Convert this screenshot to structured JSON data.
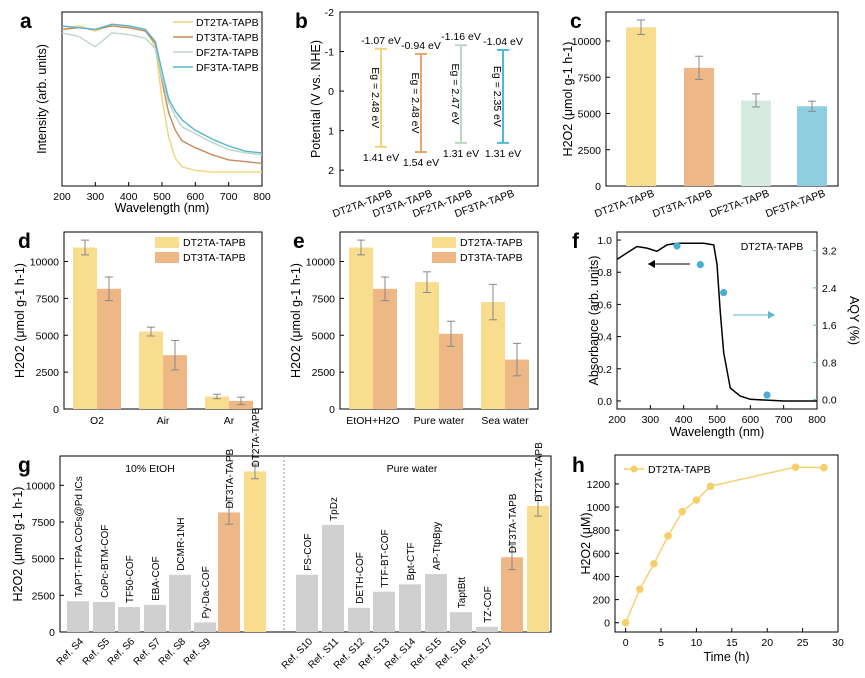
{
  "figure": {
    "panel_labels": [
      "a",
      "b",
      "c",
      "d",
      "e",
      "f",
      "g",
      "h"
    ]
  },
  "chart_data": [
    {
      "panel": "a",
      "type": "line",
      "xlabel": "Wavelength (nm)",
      "ylabel": "Intensity (arb. units)",
      "xlim": [
        200,
        800
      ],
      "xticks": [
        200,
        300,
        400,
        500,
        600,
        700,
        800
      ],
      "grid": false,
      "legend": "top-right",
      "series": [
        {
          "name": "DT2TA-TAPB",
          "color": "#f2d27a",
          "x": [
            200,
            250,
            300,
            350,
            400,
            450,
            480,
            500,
            520,
            540,
            560,
            600,
            650,
            700,
            750,
            800
          ],
          "y": [
            0.9,
            0.92,
            0.89,
            0.93,
            0.92,
            0.9,
            0.8,
            0.5,
            0.28,
            0.16,
            0.11,
            0.09,
            0.08,
            0.08,
            0.08,
            0.08
          ]
        },
        {
          "name": "DT3TA-TAPB",
          "color": "#c98a5a",
          "x": [
            200,
            250,
            300,
            350,
            400,
            450,
            480,
            500,
            520,
            540,
            560,
            600,
            650,
            700,
            750,
            800
          ],
          "y": [
            0.9,
            0.91,
            0.9,
            0.92,
            0.91,
            0.89,
            0.82,
            0.6,
            0.42,
            0.32,
            0.26,
            0.22,
            0.18,
            0.15,
            0.14,
            0.13
          ]
        },
        {
          "name": "DF2TA-TAPB",
          "color": "#bcd7c5",
          "x": [
            200,
            250,
            300,
            350,
            400,
            450,
            480,
            500,
            520,
            540,
            560,
            600,
            650,
            700,
            750,
            800
          ],
          "y": [
            0.88,
            0.86,
            0.8,
            0.88,
            0.87,
            0.85,
            0.79,
            0.62,
            0.48,
            0.4,
            0.34,
            0.3,
            0.25,
            0.21,
            0.19,
            0.18
          ]
        },
        {
          "name": "DF3TA-TAPB",
          "color": "#55b6d2",
          "x": [
            200,
            250,
            300,
            350,
            400,
            450,
            480,
            500,
            520,
            540,
            560,
            600,
            650,
            700,
            750,
            800
          ],
          "y": [
            0.92,
            0.91,
            0.9,
            0.93,
            0.92,
            0.9,
            0.83,
            0.66,
            0.5,
            0.43,
            0.38,
            0.32,
            0.27,
            0.23,
            0.2,
            0.19
          ]
        }
      ]
    },
    {
      "panel": "b",
      "type": "bar",
      "ylabel": "Potential (V vs. NHE)",
      "ylim": [
        2.4,
        -2.0
      ],
      "yticks": [
        "-2",
        "-1",
        "0",
        "1",
        "2"
      ],
      "categories": [
        "DT2TA-TAPB",
        "DT3TA-TAPB",
        "DF2TA-TAPB",
        "DF3TA-TAPB"
      ],
      "cb": [
        -1.07,
        -0.94,
        -1.16,
        -1.04
      ],
      "vb": [
        1.41,
        1.54,
        1.31,
        1.31
      ],
      "cb_labels": [
        "-1.07 eV",
        "-0.94 eV",
        "-1.16 eV",
        "-1.04 eV"
      ],
      "vb_labels": [
        "1.41 eV",
        "1.54 eV",
        "1.31 eV",
        "1.31 eV"
      ],
      "eg_labels": [
        "Eg = 2.48 eV",
        "Eg = 2.48 eV",
        "Eg = 2.47 eV",
        "Eg = 2.35 eV"
      ],
      "colors": [
        "#f2d27a",
        "#e4a86a",
        "#bcd7c5",
        "#55b6d2"
      ]
    },
    {
      "panel": "c",
      "type": "bar",
      "ylabel": "H2O2 (μmol g-1 h-1)",
      "ylim": [
        0,
        12000
      ],
      "yticks": [
        "0",
        "2500",
        "5000",
        "7500",
        "10000"
      ],
      "categories": [
        "DT2TA-TAPB",
        "DT3TA-TAPB",
        "DF2TA-TAPB",
        "DF3TA-TAPB"
      ],
      "values": [
        10950,
        8150,
        5900,
        5500
      ],
      "errors": [
        500,
        800,
        450,
        350
      ],
      "colors": [
        "#f8dd8e",
        "#eeb786",
        "#d7eadf",
        "#8dcfe0"
      ]
    },
    {
      "panel": "d",
      "type": "bar",
      "ylabel": "H2O2 (μmol g-1 h-1)",
      "ylim": [
        0,
        12000
      ],
      "yticks": [
        "0",
        "2500",
        "5000",
        "7500",
        "10000"
      ],
      "categories": [
        "O2",
        "Air",
        "Ar"
      ],
      "legend": "top-right",
      "series": [
        {
          "name": "DT2TA-TAPB",
          "color": "#f8dd8e",
          "values": [
            10950,
            5250,
            850
          ],
          "errors": [
            500,
            300,
            150
          ]
        },
        {
          "name": "DT3TA-TAPB",
          "color": "#eeb786",
          "values": [
            8150,
            3650,
            550
          ],
          "errors": [
            800,
            1000,
            250
          ]
        }
      ]
    },
    {
      "panel": "e",
      "type": "bar",
      "ylabel": "H2O2 (μmol g-1 h-1)",
      "ylim": [
        0,
        12000
      ],
      "yticks": [
        "0",
        "2500",
        "5000",
        "7500",
        "10000"
      ],
      "categories": [
        "EtOH+H2O",
        "Pure water",
        "Sea water"
      ],
      "legend": "top-right",
      "series": [
        {
          "name": "DT2TA-TAPB",
          "color": "#f8dd8e",
          "values": [
            10950,
            8600,
            7250
          ],
          "errors": [
            500,
            700,
            1200
          ]
        },
        {
          "name": "DT3TA-TAPB",
          "color": "#eeb786",
          "values": [
            8150,
            5100,
            3350
          ],
          "errors": [
            800,
            850,
            1100
          ]
        }
      ]
    },
    {
      "panel": "f",
      "type": "line",
      "title": "DT2TA-TAPB",
      "xlabel": "Wavelength (nm)",
      "ylabel": "Absorbance (arb. units)",
      "y2label": "AQY (%)",
      "xlim": [
        200,
        800
      ],
      "ylim": [
        -0.05,
        1.05
      ],
      "y2lim": [
        -0.2,
        3.6
      ],
      "xticks": [
        "200",
        "300",
        "400",
        "500",
        "600",
        "700",
        "800"
      ],
      "yticks": [
        "0.0",
        "0.2",
        "0.4",
        "0.6",
        "0.8",
        "1.0"
      ],
      "y2ticks": [
        "0.0",
        "0.8",
        "1.6",
        "2.4",
        "3.2"
      ],
      "absorbance": {
        "x": [
          200,
          230,
          260,
          290,
          320,
          350,
          380,
          420,
          460,
          490,
          500,
          510,
          520,
          540,
          570,
          600,
          700,
          800
        ],
        "y": [
          0.88,
          0.92,
          0.96,
          0.95,
          0.93,
          0.97,
          0.98,
          0.98,
          0.98,
          0.97,
          0.85,
          0.55,
          0.3,
          0.08,
          0.03,
          0.01,
          0.0,
          0.0
        ]
      },
      "aqy": {
        "x": [
          380,
          450,
          520,
          650
        ],
        "y": [
          3.3,
          2.9,
          2.3,
          0.1
        ]
      }
    },
    {
      "panel": "g",
      "type": "bar",
      "ylabel": "H2O2 (μmol g-1 h-1)",
      "ylim": [
        0,
        12000
      ],
      "yticks": [
        "0",
        "2500",
        "5000",
        "7500",
        "10000"
      ],
      "group_labels": [
        "10% EtOH",
        "Pure water"
      ],
      "groups": [
        {
          "bars": [
            {
              "label": "TAPT-TFPA COFs@Pd ICs",
              "ref": "Ref. S4",
              "value": 2100,
              "color": "#d0d0d0"
            },
            {
              "label": "CoPc-BTM-COF",
              "ref": "Ref. S5",
              "value": 2050,
              "color": "#d0d0d0"
            },
            {
              "label": "TF50-COF",
              "ref": "Ref. S6",
              "value": 1700,
              "color": "#d0d0d0"
            },
            {
              "label": "EBA-COF",
              "ref": "Ref. S7",
              "value": 1850,
              "color": "#d0d0d0"
            },
            {
              "label": "DCMR-1NH",
              "ref": "Ref. S8",
              "value": 3900,
              "color": "#d0d0d0"
            },
            {
              "label": "Py-Da-COF",
              "ref": "Ref. S9",
              "value": 650,
              "color": "#d0d0d0"
            },
            {
              "label": "DT3TA-TAPB",
              "ref": "",
              "value": 8150,
              "error": 800,
              "color": "#eeb786"
            },
            {
              "label": "DT2TA-TAPB",
              "ref": "",
              "value": 10950,
              "error": 500,
              "color": "#f8dd8e"
            }
          ]
        },
        {
          "bars": [
            {
              "label": "FS-COF",
              "ref": "Ref. S10",
              "value": 3900,
              "color": "#d0d0d0"
            },
            {
              "label": "TpDz",
              "ref": "Ref. S11",
              "value": 7300,
              "color": "#d0d0d0"
            },
            {
              "label": "DETH-COF",
              "ref": "Ref. S12",
              "value": 1650,
              "color": "#d0d0d0"
            },
            {
              "label": "TTF-BT-COF",
              "ref": "Ref. S13",
              "value": 2750,
              "color": "#d0d0d0"
            },
            {
              "label": "Bpt-CTF",
              "ref": "Ref. S14",
              "value": 3250,
              "color": "#d0d0d0"
            },
            {
              "label": "AP-TtpBpy",
              "ref": "Ref. S15",
              "value": 3950,
              "color": "#d0d0d0"
            },
            {
              "label": "TaptBtt",
              "ref": "Ref. S16",
              "value": 1350,
              "color": "#d0d0d0"
            },
            {
              "label": "TZ-COF",
              "ref": "Ref. S17",
              "value": 350,
              "color": "#d0d0d0"
            },
            {
              "label": "DT3TA-TAPB",
              "ref": "",
              "value": 5100,
              "error": 850,
              "color": "#eeb786"
            },
            {
              "label": "DT2TA-TAPB",
              "ref": "",
              "value": 8600,
              "error": 700,
              "color": "#f8dd8e"
            }
          ]
        }
      ]
    },
    {
      "panel": "h",
      "type": "line",
      "xlabel": "Time (h)",
      "ylabel": "H2O2 (μM)",
      "xlim": [
        -1.5,
        30
      ],
      "ylim": [
        -80,
        1450
      ],
      "xticks": [
        "0",
        "5",
        "10",
        "15",
        "20",
        "25",
        "30"
      ],
      "yticks": [
        "0",
        "200",
        "400",
        "600",
        "800",
        "1000",
        "1200"
      ],
      "legend": "top-left",
      "series": [
        {
          "name": "DT2TA-TAPB",
          "color": "#f5cf6a",
          "x": [
            0,
            2,
            4,
            6,
            8,
            10,
            12,
            24,
            28
          ],
          "y": [
            0,
            290,
            510,
            750,
            960,
            1060,
            1180,
            1345,
            1340
          ]
        }
      ]
    }
  ]
}
